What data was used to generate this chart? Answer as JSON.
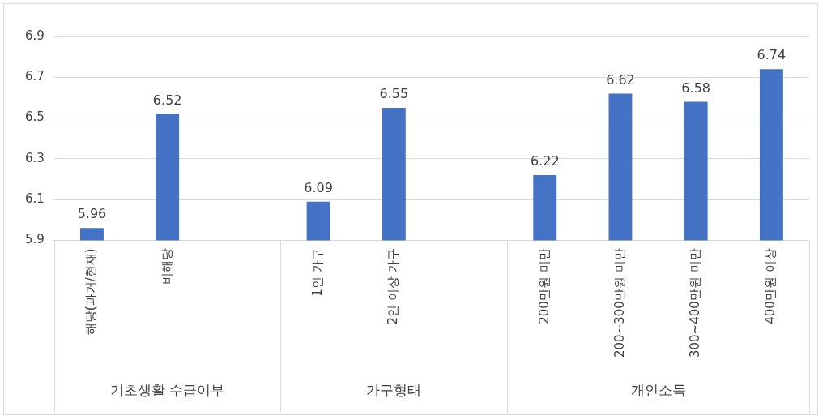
{
  "chart_data": {
    "type": "bar",
    "categories": [
      "해당(과거/현재)",
      "비해당",
      null,
      "1인 가구",
      "2인 이상 가구",
      null,
      "200만원 미만",
      "200~300만원 미만",
      "300~400만원 미만",
      "400만원 이상"
    ],
    "values": [
      5.96,
      6.52,
      null,
      6.09,
      6.55,
      null,
      6.22,
      6.62,
      6.58,
      6.74
    ],
    "color": "#4472c4",
    "ylim": [
      5.9,
      6.9
    ],
    "yticks": [
      5.9,
      6.1,
      6.3,
      6.5,
      6.7,
      6.9
    ],
    "grid": "y",
    "legend": false,
    "data_labels": true,
    "annotations": [
      "기초생활 수급여부",
      "가구형태",
      "개인소득"
    ]
  }
}
